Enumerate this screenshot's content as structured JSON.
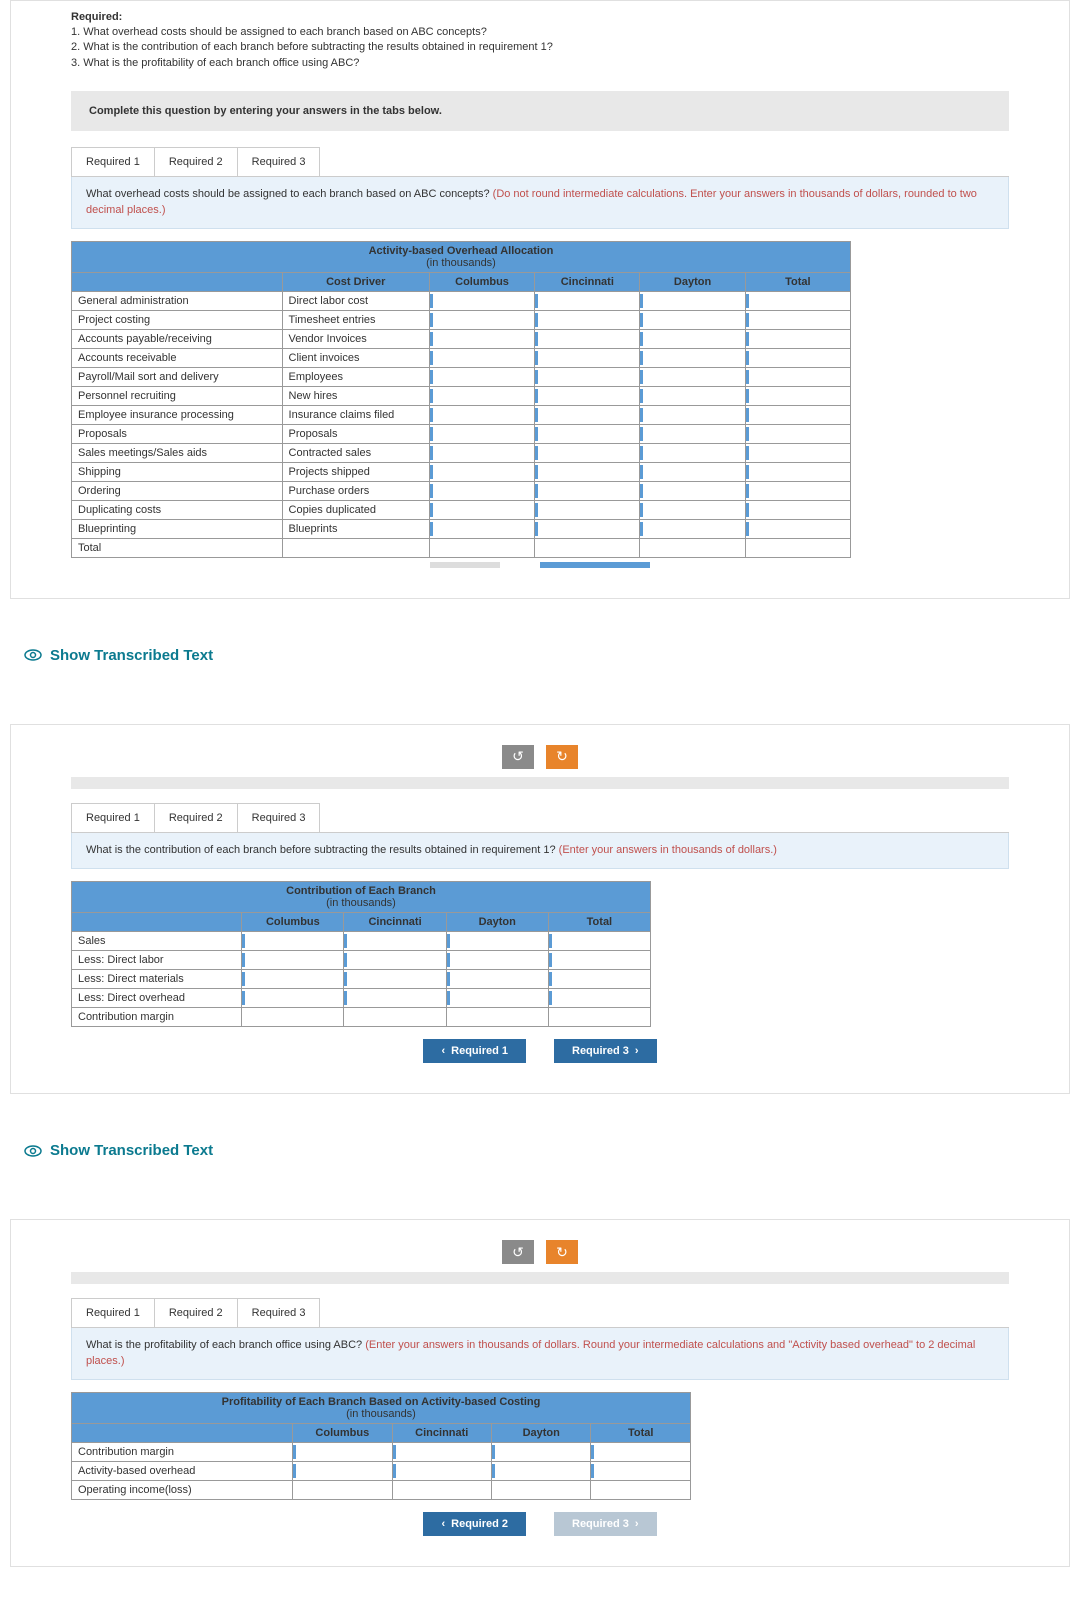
{
  "required": {
    "heading": "Required:",
    "items": [
      "1. What overhead costs should be assigned to each branch based on ABC concepts?",
      "2. What is the contribution of each branch before subtracting the results obtained in requirement 1?",
      "3. What is the profitability of each branch office using ABC?"
    ]
  },
  "instruction": "Complete this question by entering your answers in the tabs below.",
  "tabs": [
    "Required 1",
    "Required 2",
    "Required 3"
  ],
  "section1": {
    "prompt": "What overhead costs should be assigned to each branch based on ABC concepts? ",
    "hint": "(Do not round intermediate calculations. Enter your answers in thousands of dollars, rounded to two decimal places.)",
    "table": {
      "title": "Activity-based Overhead Allocation",
      "subtitle": "(in thousands)",
      "headers": [
        "Cost Driver",
        "Columbus",
        "Cincinnati",
        "Dayton",
        "Total"
      ],
      "rows": [
        {
          "activity": "General administration",
          "driver": "Direct labor cost"
        },
        {
          "activity": "Project costing",
          "driver": "Timesheet entries"
        },
        {
          "activity": "Accounts payable/receiving",
          "driver": "Vendor Invoices"
        },
        {
          "activity": "Accounts receivable",
          "driver": "Client invoices"
        },
        {
          "activity": "Payroll/Mail sort and delivery",
          "driver": "Employees"
        },
        {
          "activity": "Personnel recruiting",
          "driver": "New hires"
        },
        {
          "activity": "Employee insurance processing",
          "driver": "Insurance claims filed"
        },
        {
          "activity": "Proposals",
          "driver": "Proposals"
        },
        {
          "activity": "Sales meetings/Sales aids",
          "driver": "Contracted sales"
        },
        {
          "activity": "Shipping",
          "driver": "Projects shipped"
        },
        {
          "activity": "Ordering",
          "driver": "Purchase orders"
        },
        {
          "activity": "Duplicating costs",
          "driver": "Copies duplicated"
        },
        {
          "activity": "Blueprinting",
          "driver": "Blueprints"
        }
      ],
      "total_label": "Total",
      "col_widths": {
        "activity": 200,
        "driver": 140,
        "city": 100,
        "total": 100
      },
      "header_bg": "#5b9bd5",
      "scroll": {
        "gray_w": 70,
        "blue_w": 110
      }
    }
  },
  "transcribed_label": "Show Transcribed Text",
  "section2": {
    "prompt": "What is the contribution of each branch before subtracting the results obtained in requirement 1? ",
    "hint": "(Enter your answers in thousands of dollars.)",
    "table": {
      "title": "Contribution of Each Branch",
      "subtitle": "(in thousands)",
      "headers": [
        "Columbus",
        "Cincinnati",
        "Dayton",
        "Total"
      ],
      "rows": [
        "Sales",
        "Less: Direct labor",
        "Less: Direct materials",
        "Less: Direct overhead",
        "Contribution margin"
      ],
      "col_widths": {
        "label": 150,
        "city": 90
      }
    },
    "nav_prev": "Required 1",
    "nav_next": "Required 3"
  },
  "section3": {
    "prompt": "What is the profitability of each branch office using ABC? ",
    "hint": "(Enter your answers in thousands of dollars. Round your intermediate calculations and \"Activity based overhead\" to 2 decimal places.)",
    "table": {
      "title": "Profitability of Each Branch Based on Activity-based Costing",
      "subtitle": "(in thousands)",
      "headers": [
        "Columbus",
        "Cincinnati",
        "Dayton",
        "Total"
      ],
      "rows": [
        "Contribution margin",
        "Activity-based overhead",
        "Operating income(loss)"
      ],
      "col_widths": {
        "label": 200,
        "city": 90
      }
    },
    "nav_prev": "Required 2",
    "nav_next": "Required 3"
  },
  "colors": {
    "tab_border": "#ccc",
    "prompt_bg": "#e9f2fa",
    "hint_color": "#c0504d",
    "nav_bg": "#2d6ca2",
    "nav_disabled": "#b8c7d4",
    "teal": "#0b7a8f"
  }
}
